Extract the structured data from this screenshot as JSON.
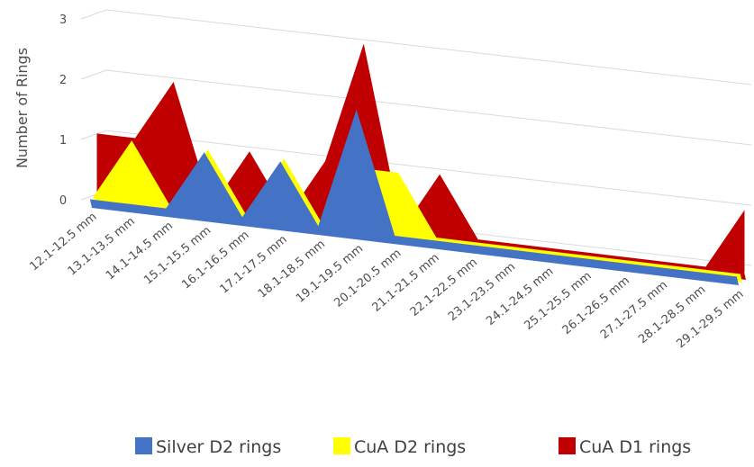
{
  "chart_data": {
    "type": "area",
    "subtype": "3d-area",
    "title": "",
    "xlabel": "",
    "ylabel": "Number of Rings",
    "ylim": [
      0,
      3
    ],
    "yticks": [
      0,
      1,
      2,
      3
    ],
    "grid": true,
    "legend_position": "bottom",
    "categories": [
      "12.1-12.5 mm",
      "13.1-13.5 mm",
      "14.1-14.5 mm",
      "15.1-15.5 mm",
      "16.1-16.5 mm",
      "17.1-17.5 mm",
      "18.1-18.5 mm",
      "19.1-19.5 mm",
      "20.1-20.5 mm",
      "21.1-21.5 mm",
      "22.1-22.5 mm",
      "23.1-23.5 mm",
      "24.1-24.5 mm",
      "25.1-25.5 mm",
      "26.1-26.5 mm",
      "27.1-27.5 mm",
      "28.1-28.5 mm",
      "29.1-29.5 mm"
    ],
    "series": [
      {
        "name": "Silver D2 rings",
        "color": "#4472c4",
        "values": [
          0,
          0,
          0,
          1,
          0,
          1,
          0,
          2,
          0,
          0,
          0,
          0,
          0,
          0,
          0,
          0,
          0,
          0
        ]
      },
      {
        "name": "CuA D2 rings",
        "color": "#ffff00",
        "values": [
          0,
          1,
          0,
          1,
          0,
          1,
          0,
          1,
          1,
          0,
          0,
          0,
          0,
          0,
          0,
          0,
          0,
          0
        ]
      },
      {
        "name": "CuA D1 rings",
        "color": "#c00000",
        "values": [
          1,
          1,
          2,
          0,
          1,
          0,
          1,
          3,
          0,
          1,
          0,
          0,
          0,
          0,
          0,
          0,
          0,
          1
        ]
      }
    ]
  }
}
